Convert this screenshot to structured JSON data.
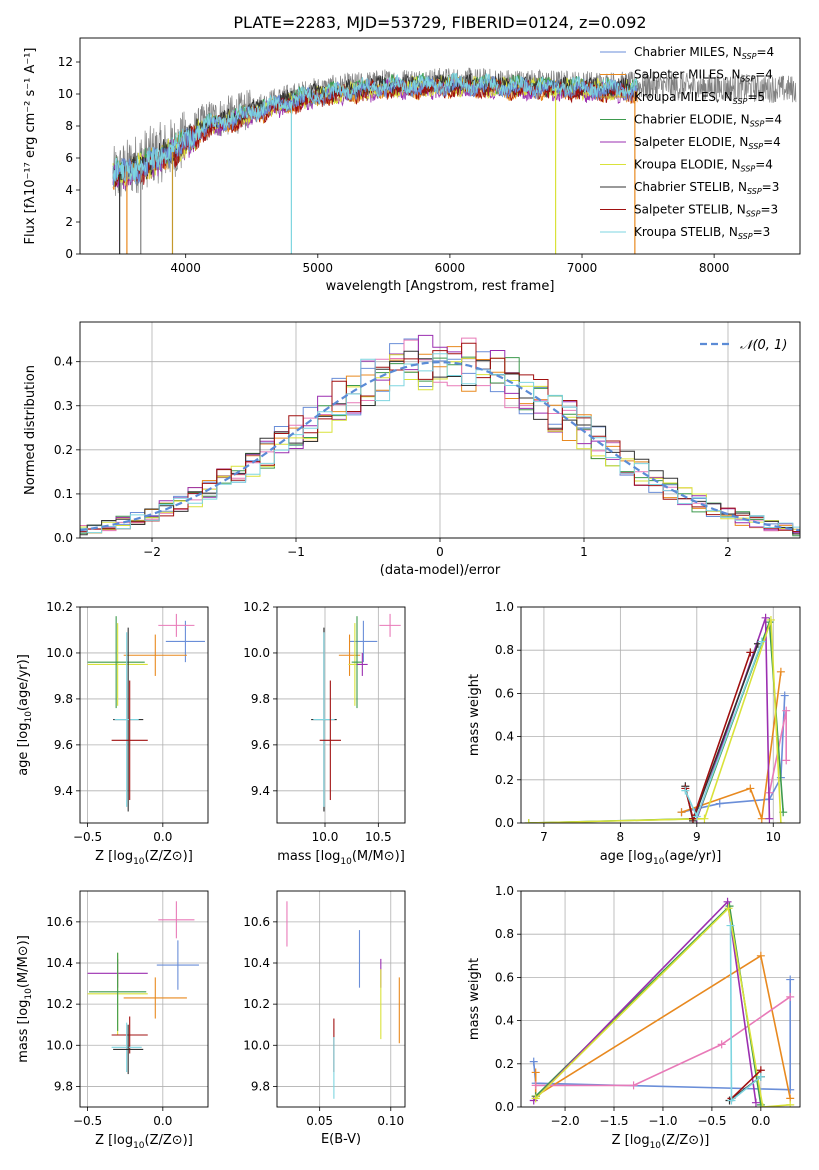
{
  "figure_title": "PLATE=2283, MJD=53729, FIBERID=0124, z=0.092",
  "colors": {
    "chabrier_miles": "#6a8ed8",
    "salpeter_miles": "#e8891f",
    "kroupa_miles": "#c4982c",
    "chabrier_elodie": "#3d9a4d",
    "salpeter_elodie": "#9b2fb0",
    "kroupa_elodie": "#d9e23a",
    "chabrier_stelib": "#333333",
    "salpeter_stelib": "#a01010",
    "kroupa_stelib": "#7ed5e0",
    "pink": "#e87ab8",
    "data_gray": "#808080",
    "normal_dashed": "#5b8bd6"
  },
  "chart_data": [
    {
      "id": "spectrum",
      "type": "line",
      "xlabel": "wavelength [Angstrom, rest frame]",
      "ylabel": "Flux [fλ10⁻¹⁷ erg cm⁻² s⁻¹ A⁻¹]",
      "xlim": [
        3200,
        8650
      ],
      "ylim": [
        0,
        13.5
      ],
      "xticks": [
        "4000",
        "5000",
        "6000",
        "7000",
        "8000"
      ],
      "yticks": [
        "0",
        "2",
        "4",
        "6",
        "8",
        "10",
        "12"
      ],
      "legend_position": "top-right",
      "legend": [
        {
          "main": "Chabrier MILES, N",
          "sub": "SSP",
          "tail": "=4",
          "color": "chabrier_miles"
        },
        {
          "main": "Salpeter MILES, N",
          "sub": "SSP",
          "tail": "=4",
          "color": "salpeter_miles"
        },
        {
          "main": "Kroupa MILES, N",
          "sub": "SSP",
          "tail": "=5",
          "color": "kroupa_miles"
        },
        {
          "main": "Chabrier ELODIE, N",
          "sub": "SSP",
          "tail": "=4",
          "color": "chabrier_elodie"
        },
        {
          "main": "Salpeter ELODIE, N",
          "sub": "SSP",
          "tail": "=4",
          "color": "salpeter_elodie"
        },
        {
          "main": "Kroupa ELODIE, N",
          "sub": "SSP",
          "tail": "=4",
          "color": "kroupa_elodie"
        },
        {
          "main": "Chabrier STELIB, N",
          "sub": "SSP",
          "tail": "=3",
          "color": "chabrier_stelib"
        },
        {
          "main": "Salpeter STELIB, N",
          "sub": "SSP",
          "tail": "=3",
          "color": "salpeter_stelib"
        },
        {
          "main": "Kroupa STELIB, N",
          "sub": "SSP",
          "tail": "=3",
          "color": "kroupa_stelib"
        }
      ],
      "data_series": {
        "x_start": 3450,
        "x_end": 8620,
        "continuum": [
          [
            3450,
            4.8
          ],
          [
            3700,
            6.0
          ],
          [
            3950,
            6.8
          ],
          [
            4150,
            8.3
          ],
          [
            4400,
            8.8
          ],
          [
            4700,
            9.6
          ],
          [
            5000,
            10.2
          ],
          [
            5500,
            10.7
          ],
          [
            6000,
            10.8
          ],
          [
            6500,
            10.7
          ],
          [
            7000,
            10.6
          ],
          [
            7500,
            10.5
          ],
          [
            8000,
            10.4
          ],
          [
            8620,
            10.3
          ]
        ]
      },
      "model_series": {
        "x_start": 3450,
        "x_end": 7420,
        "continuum": [
          [
            3450,
            4.9
          ],
          [
            3700,
            5.5
          ],
          [
            3950,
            6.6
          ],
          [
            4150,
            7.9
          ],
          [
            4400,
            8.5
          ],
          [
            4700,
            9.3
          ],
          [
            5000,
            9.9
          ],
          [
            5500,
            10.4
          ],
          [
            6000,
            10.5
          ],
          [
            6500,
            10.4
          ],
          [
            7000,
            10.3
          ],
          [
            7420,
            10.2
          ]
        ]
      },
      "spikes": [
        {
          "x": 3500,
          "color": "chabrier_stelib"
        },
        {
          "x": 3555,
          "color": "salpeter_miles"
        },
        {
          "x": 3660,
          "color": "data_gray"
        },
        {
          "x": 3900,
          "color": "kroupa_miles"
        },
        {
          "x": 4800,
          "color": "kroupa_stelib"
        },
        {
          "x": 6800,
          "color": "kroupa_elodie"
        },
        {
          "x": 7400,
          "color": "salpeter_miles"
        }
      ]
    },
    {
      "id": "residuals",
      "type": "histogram",
      "xlabel": "(data-model)/error",
      "ylabel": "Normed distribution",
      "xlim": [
        -2.5,
        2.5
      ],
      "ylim": [
        0,
        0.49
      ],
      "xticks": [
        "−2",
        "−1",
        "0",
        "1",
        "2"
      ],
      "yticks": [
        "0.0",
        "0.1",
        "0.2",
        "0.3",
        "0.4"
      ],
      "bin_width": 0.1,
      "grid": true,
      "legend_position": "top-right",
      "legend": [
        {
          "label": "𝒩(0, 1)",
          "style": "dashed",
          "color": "normal_dashed"
        }
      ],
      "series_colors": [
        "chabrier_miles",
        "salpeter_miles",
        "pink",
        "chabrier_elodie",
        "salpeter_elodie",
        "kroupa_elodie",
        "chabrier_stelib",
        "salpeter_stelib",
        "kroupa_stelib"
      ]
    },
    {
      "id": "age-vs-Z",
      "type": "errorbar",
      "xlabel_main": "Z [log",
      "xlabel_sub": "10",
      "xlabel_tail": "(Z/Z⊙)]",
      "ylabel_main": "age  [log",
      "ylabel_sub": "10",
      "ylabel_tail": "(age/yr)]",
      "xlim": [
        -0.55,
        0.3
      ],
      "ylim": [
        9.26,
        10.2
      ],
      "xticks": [
        "−0.5",
        "0.0"
      ],
      "yticks": [
        "9.4",
        "9.6",
        "9.8",
        "10.0",
        "10.2"
      ],
      "grid": true,
      "points": [
        {
          "x": 0.15,
          "y": 10.05,
          "xerr": 0.13,
          "yerr": 0.09,
          "color": "chabrier_miles"
        },
        {
          "x": 0.09,
          "y": 10.12,
          "xerr": 0.12,
          "yerr": 0.05,
          "color": "pink"
        },
        {
          "x": -0.05,
          "y": 9.99,
          "xerr": 0.21,
          "yerr": 0.09,
          "color": "salpeter_miles"
        },
        {
          "x": -0.3,
          "y": 9.95,
          "xerr": 0.2,
          "yerr": 0.18,
          "color": "kroupa_elodie"
        },
        {
          "x": -0.31,
          "y": 9.96,
          "xerr": 0.19,
          "yerr": 0.2,
          "color": "chabrier_elodie"
        },
        {
          "x": -0.23,
          "y": 9.71,
          "xerr": 0.1,
          "yerr": 0.4,
          "color": "chabrier_stelib"
        },
        {
          "x": -0.24,
          "y": 9.71,
          "xerr": 0.08,
          "yerr": 0.38,
          "color": "kroupa_stelib"
        },
        {
          "x": -0.22,
          "y": 9.62,
          "xerr": 0.12,
          "yerr": 0.26,
          "color": "salpeter_stelib"
        }
      ]
    },
    {
      "id": "age-vs-mass",
      "type": "errorbar",
      "xlabel_main": "mass [log",
      "xlabel_sub": "10",
      "xlabel_tail": "(M/M⊙)]",
      "xlim": [
        9.55,
        10.75
      ],
      "ylim": [
        9.26,
        10.2
      ],
      "xticks": [
        "10.0",
        "10.5"
      ],
      "yticks": [
        "9.4",
        "9.6",
        "9.8",
        "10.0",
        "10.2"
      ],
      "grid": true,
      "points": [
        {
          "x": 10.36,
          "y": 10.05,
          "xerr": 0.13,
          "yerr": 0.09,
          "color": "chabrier_miles"
        },
        {
          "x": 10.61,
          "y": 10.12,
          "xerr": 0.1,
          "yerr": 0.05,
          "color": "pink"
        },
        {
          "x": 10.23,
          "y": 9.99,
          "xerr": 0.1,
          "yerr": 0.09,
          "color": "salpeter_miles"
        },
        {
          "x": 10.28,
          "y": 9.95,
          "xerr": 0.06,
          "yerr": 0.18,
          "color": "kroupa_elodie"
        },
        {
          "x": 10.3,
          "y": 9.96,
          "xerr": 0.05,
          "yerr": 0.2,
          "color": "chabrier_elodie"
        },
        {
          "x": 10.35,
          "y": 9.95,
          "xerr": 0.05,
          "yerr": 0.05,
          "color": "salpeter_elodie"
        },
        {
          "x": 9.99,
          "y": 9.71,
          "xerr": 0.12,
          "yerr": 0.4,
          "color": "chabrier_stelib"
        },
        {
          "x": 9.99,
          "y": 9.71,
          "xerr": 0.1,
          "yerr": 0.38,
          "color": "kroupa_stelib"
        },
        {
          "x": 10.05,
          "y": 9.62,
          "xerr": 0.1,
          "yerr": 0.26,
          "color": "salpeter_stelib"
        }
      ]
    },
    {
      "id": "weight-vs-age",
      "type": "line",
      "xlabel_main": "age  [log",
      "xlabel_sub": "10",
      "xlabel_tail": "(age/yr)]",
      "ylabel": "mass weight",
      "xlim": [
        6.7,
        10.35
      ],
      "ylim": [
        0,
        1.0
      ],
      "xticks": [
        "7",
        "8",
        "9",
        "10"
      ],
      "yticks": [
        "0.0",
        "0.2",
        "0.4",
        "0.6",
        "0.8",
        "1.0"
      ],
      "grid": true,
      "series": [
        {
          "color": "chabrier_miles",
          "points": [
            [
              8.8,
              0.05
            ],
            [
              9.3,
              0.09
            ],
            [
              9.95,
              0.11
            ],
            [
              10.1,
              0.21
            ],
            [
              10.15,
              0.59
            ]
          ]
        },
        {
          "color": "salpeter_miles",
          "points": [
            [
              8.8,
              0.05
            ],
            [
              9.7,
              0.16
            ],
            [
              9.85,
              0.02
            ],
            [
              10.1,
              0.7
            ]
          ]
        },
        {
          "color": "pink",
          "points": [
            [
              9.95,
              0.14
            ],
            [
              10.17,
              0.52
            ],
            [
              10.17,
              0.29
            ]
          ]
        },
        {
          "color": "chabrier_elodie",
          "points": [
            [
              6.8,
              0.0
            ],
            [
              9.0,
              0.02
            ],
            [
              9.95,
              0.93
            ],
            [
              10.13,
              0.05
            ]
          ]
        },
        {
          "color": "salpeter_elodie",
          "points": [
            [
              9.0,
              0.02
            ],
            [
              9.9,
              0.95
            ],
            [
              9.95,
              0.02
            ]
          ]
        },
        {
          "color": "kroupa_elodie",
          "points": [
            [
              6.8,
              0.0
            ],
            [
              9.1,
              0.02
            ],
            [
              9.97,
              0.94
            ],
            [
              10.1,
              0.0
            ]
          ]
        },
        {
          "color": "chabrier_stelib",
          "points": [
            [
              8.85,
              0.17
            ],
            [
              8.95,
              0.01
            ],
            [
              9.8,
              0.83
            ]
          ]
        },
        {
          "color": "salpeter_stelib",
          "points": [
            [
              8.85,
              0.16
            ],
            [
              8.95,
              0.02
            ],
            [
              9.7,
              0.79
            ]
          ]
        },
        {
          "color": "kroupa_stelib",
          "points": [
            [
              8.85,
              0.15
            ],
            [
              9.0,
              0.03
            ],
            [
              9.85,
              0.84
            ]
          ]
        }
      ]
    },
    {
      "id": "mass-vs-Z",
      "type": "errorbar",
      "xlabel_main": "Z [log",
      "xlabel_sub": "10",
      "xlabel_tail": "(Z/Z⊙)]",
      "ylabel_main": "mass [log",
      "ylabel_sub": "10",
      "ylabel_tail": "(M/M⊙)]",
      "xlim": [
        -0.55,
        0.3
      ],
      "ylim": [
        9.7,
        10.75
      ],
      "xticks": [
        "−0.5",
        "0.0"
      ],
      "yticks": [
        "9.8",
        "10.0",
        "10.2",
        "10.4",
        "10.6"
      ],
      "grid": true,
      "points": [
        {
          "x": 0.09,
          "y": 10.61,
          "xerr": 0.12,
          "yerr": 0.09,
          "color": "pink"
        },
        {
          "x": 0.1,
          "y": 10.39,
          "xerr": 0.14,
          "yerr": 0.12,
          "color": "chabrier_miles"
        },
        {
          "x": -0.3,
          "y": 10.35,
          "xerr": 0.2,
          "yerr": 0.07,
          "color": "salpeter_elodie"
        },
        {
          "x": -0.3,
          "y": 10.25,
          "xerr": 0.2,
          "yerr": 0.2,
          "color": "kroupa_elodie"
        },
        {
          "x": -0.3,
          "y": 10.26,
          "xerr": 0.19,
          "yerr": 0.19,
          "color": "chabrier_elodie"
        },
        {
          "x": -0.05,
          "y": 10.23,
          "xerr": 0.21,
          "yerr": 0.1,
          "color": "salpeter_miles"
        },
        {
          "x": -0.22,
          "y": 10.05,
          "xerr": 0.12,
          "yerr": 0.09,
          "color": "salpeter_stelib"
        },
        {
          "x": -0.24,
          "y": 9.99,
          "xerr": 0.1,
          "yerr": 0.12,
          "color": "kroupa_stelib"
        },
        {
          "x": -0.23,
          "y": 9.98,
          "xerr": 0.1,
          "yerr": 0.12,
          "color": "chabrier_stelib"
        }
      ]
    },
    {
      "id": "mass-vs-EBV",
      "type": "errorbar",
      "xlabel": "E(B-V)",
      "xlim": [
        0.02,
        0.11
      ],
      "ylim": [
        9.7,
        10.75
      ],
      "xticks": [
        "0.05",
        "0.10"
      ],
      "yticks": [
        "9.8",
        "10.0",
        "10.2",
        "10.4",
        "10.6"
      ],
      "grid": true,
      "points": [
        {
          "x": 0.027,
          "y": 10.59,
          "xerr": 0,
          "yerr": 0.11,
          "color": "pink"
        },
        {
          "x": 0.078,
          "y": 10.42,
          "xerr": 0,
          "yerr": 0.14,
          "color": "chabrier_miles"
        },
        {
          "x": 0.093,
          "y": 10.35,
          "xerr": 0,
          "yerr": 0.07,
          "color": "salpeter_elodie"
        },
        {
          "x": 0.093,
          "y": 10.2,
          "xerr": 0,
          "yerr": 0.17,
          "color": "kroupa_elodie"
        },
        {
          "x": 0.106,
          "y": 10.17,
          "xerr": 0,
          "yerr": 0.16,
          "color": "salpeter_miles"
        },
        {
          "x": 0.06,
          "y": 10.0,
          "xerr": 0,
          "yerr": 0.13,
          "color": "salpeter_stelib"
        },
        {
          "x": 0.06,
          "y": 9.89,
          "xerr": 0,
          "yerr": 0.15,
          "color": "kroupa_stelib"
        }
      ]
    },
    {
      "id": "weight-vs-Z",
      "type": "line",
      "xlabel_main": "Z [log",
      "xlabel_sub": "10",
      "xlabel_tail": "(Z/Z⊙)]",
      "ylabel": "mass weight",
      "xlim": [
        -2.45,
        0.4
      ],
      "ylim": [
        0,
        1.0
      ],
      "xticks": [
        "−2.0",
        "−1.5",
        "−1.0",
        "−0.5",
        "0.0"
      ],
      "yticks": [
        "0.0",
        "0.2",
        "0.4",
        "0.6",
        "0.8",
        "1.0"
      ],
      "grid": true,
      "series": [
        {
          "color": "chabrier_miles",
          "points": [
            [
              -2.32,
              0.21
            ],
            [
              -2.3,
              0.11
            ],
            [
              0.3,
              0.08
            ],
            [
              0.3,
              0.59
            ]
          ]
        },
        {
          "color": "salpeter_miles",
          "points": [
            [
              -2.3,
              0.16
            ],
            [
              -2.3,
              0.05
            ],
            [
              0.0,
              0.7
            ],
            [
              0.3,
              0.04
            ]
          ]
        },
        {
          "color": "pink",
          "points": [
            [
              -2.3,
              0.1
            ],
            [
              -1.3,
              0.1
            ],
            [
              -0.4,
              0.29
            ],
            [
              0.3,
              0.51
            ]
          ]
        },
        {
          "color": "chabrier_elodie",
          "points": [
            [
              -2.3,
              0.05
            ],
            [
              -0.32,
              0.93
            ],
            [
              0.0,
              0.01
            ]
          ]
        },
        {
          "color": "salpeter_elodie",
          "points": [
            [
              -2.32,
              0.03
            ],
            [
              -0.34,
              0.95
            ],
            [
              -0.05,
              0.02
            ]
          ]
        },
        {
          "color": "kroupa_elodie",
          "points": [
            [
              -2.3,
              0.04
            ],
            [
              -0.33,
              0.92
            ],
            [
              0.02,
              0.0
            ],
            [
              0.3,
              0.01
            ]
          ]
        },
        {
          "color": "chabrier_stelib",
          "points": [
            [
              -0.32,
              0.03
            ],
            [
              0.0,
              0.14
            ]
          ]
        },
        {
          "color": "salpeter_stelib",
          "points": [
            [
              -0.3,
              0.04
            ],
            [
              0.0,
              0.17
            ]
          ]
        },
        {
          "color": "kroupa_stelib",
          "points": [
            [
              -0.31,
              0.84
            ],
            [
              -0.3,
              0.03
            ],
            [
              0.0,
              0.14
            ]
          ]
        }
      ]
    }
  ]
}
